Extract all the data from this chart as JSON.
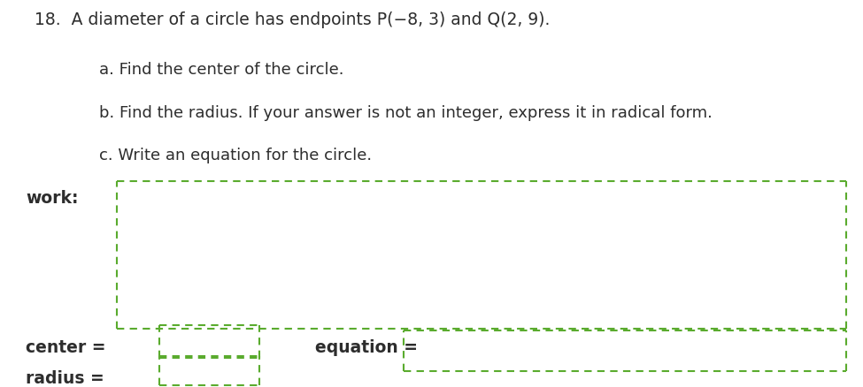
{
  "background_color": "#ffffff",
  "text_color": "#2d2d2d",
  "green_color": "#5aab2e",
  "title_line": "18.  A diameter of a circle has endpoints P(−8, 3) and Q(2, 9).",
  "sub_a": "a. Find the center of the circle.",
  "sub_b": "b. Find the radius. If your answer is not an integer, express it in radical form.",
  "sub_c": "c. Write an equation for the circle.",
  "label_work": "work:",
  "label_center": "center =",
  "label_radius": "radius =",
  "label_equation": "equation =",
  "font_size_title": 13.5,
  "font_size_sub": 13.0,
  "font_size_labels": 13.5
}
